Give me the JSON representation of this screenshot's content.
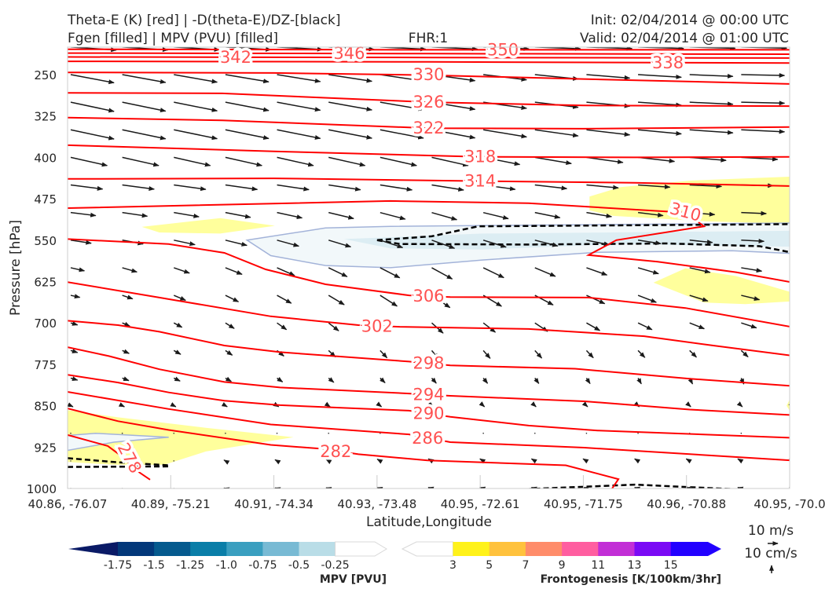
{
  "header": {
    "title_left_1": "Theta-E (K) [red] | -D(theta-E)/DZ-[black]",
    "title_left_2": "Fgen [filled] | MPV (PVU) [filled]",
    "fhr": "FHR:1",
    "init": "Init: 02/04/2014 @ 00:00 UTC",
    "valid": "Valid: 02/04/2014 @ 01:00 UTC"
  },
  "legend": {
    "wind_label": "10 m/s",
    "vertical_label": "10 cm/s"
  },
  "colors": {
    "theta_e": "#ff0000",
    "theta_e_label": "#ff5050",
    "stability": "#000000",
    "fgen_fill": "#ffff9c",
    "mpv_outer": "#f2f8fa",
    "mpv_inner": "#dcedf3",
    "mpv_edge": "#a3b3d9"
  },
  "chart_data": {
    "type": "cross-section",
    "title": "Theta-E (K) [red] | -D(theta-E)/DZ-[black] | Fgen [filled] | MPV (PVU) [filled]",
    "xlabel": "Latitude,Longitude",
    "ylabel": "Pressure [hPa]",
    "xticks": [
      "40.86, -76.07",
      "40.89, -75.21",
      "40.91, -74.34",
      "40.93, -73.48",
      "40.95, -72.61",
      "40.95, -71.75",
      "40.96, -70.88",
      "40.95, -70.0"
    ],
    "yticks": [
      250,
      325,
      400,
      475,
      550,
      625,
      700,
      775,
      850,
      925,
      1000
    ],
    "ylim": [
      200,
      1000
    ],
    "xlim": [
      0,
      7
    ],
    "theta_e_contours": [
      {
        "level": "350",
        "label_at": [
          3.5,
          205
        ],
        "points": [
          [
            0,
            204
          ],
          [
            3.5,
            205
          ],
          [
            7,
            205
          ]
        ]
      },
      {
        "level": "346",
        "label_at": [
          3.55,
          212
        ],
        "points": [
          [
            0,
            211
          ],
          [
            3.5,
            212
          ],
          [
            7,
            213
          ]
        ]
      },
      {
        "level": "342",
        "label_at": [
          3.5,
          219
        ],
        "points": [
          [
            0,
            218
          ],
          [
            3.5,
            219
          ],
          [
            7,
            220
          ]
        ]
      },
      {
        "level": "338",
        "label_at": [
          3.55,
          227
        ],
        "points": [
          [
            0,
            226
          ],
          [
            3.5,
            227
          ],
          [
            7,
            229
          ]
        ]
      },
      {
        "level": "330",
        "label_at": [
          3.5,
          250
        ],
        "points": [
          [
            0,
            246
          ],
          [
            2,
            247
          ],
          [
            3.5,
            251
          ],
          [
            5,
            258
          ],
          [
            7,
            267
          ]
        ]
      },
      {
        "level": "326",
        "label_at": [
          3.5,
          300
        ],
        "points": [
          [
            0,
            283
          ],
          [
            1.5,
            284
          ],
          [
            3.5,
            300
          ],
          [
            5,
            306
          ],
          [
            7,
            307
          ]
        ]
      },
      {
        "level": "322",
        "label_at": [
          3.5,
          347
        ],
        "points": [
          [
            0,
            328
          ],
          [
            1.5,
            333
          ],
          [
            3.5,
            347
          ],
          [
            5,
            348
          ],
          [
            7,
            345
          ]
        ]
      },
      {
        "level": "318",
        "label_at": [
          4.0,
          399
        ],
        "points": [
          [
            0,
            378
          ],
          [
            2,
            389
          ],
          [
            4,
            399
          ],
          [
            5.5,
            400
          ],
          [
            7,
            399
          ]
        ]
      },
      {
        "level": "314",
        "label_at": [
          4.0,
          443
        ],
        "points": [
          [
            0,
            439
          ],
          [
            2,
            438
          ],
          [
            4,
            443
          ],
          [
            5.5,
            446
          ],
          [
            7,
            452
          ]
        ]
      },
      {
        "level": "310",
        "label_at": [
          5.99,
          499
        ],
        "points": [
          [
            0,
            492
          ],
          [
            3.13,
            479
          ],
          [
            4.47,
            483
          ],
          [
            5.72,
            497
          ],
          [
            5.99,
            500
          ],
          [
            6.17,
            525
          ],
          [
            5.32,
            550
          ],
          [
            5.05,
            577
          ],
          [
            5.72,
            589
          ],
          [
            6.48,
            608
          ],
          [
            7.01,
            626
          ]
        ]
      },
      {
        "level": "306",
        "label_at": [
          3.5,
          651
        ],
        "points": [
          [
            0,
            548
          ],
          [
            0.98,
            557
          ],
          [
            1.52,
            573
          ],
          [
            1.92,
            603
          ],
          [
            2.5,
            630
          ],
          [
            3.31,
            650
          ],
          [
            3.71,
            653
          ],
          [
            5.05,
            654
          ],
          [
            5.99,
            673
          ],
          [
            7.01,
            707
          ]
        ]
      },
      {
        "level": "302",
        "label_at": [
          3.0,
          706
        ],
        "points": [
          [
            0,
            626
          ],
          [
            0.89,
            654
          ],
          [
            1.97,
            688
          ],
          [
            2.82,
            704
          ],
          [
            3.22,
            707
          ],
          [
            4.47,
            711
          ],
          [
            5.59,
            724
          ],
          [
            6.26,
            741
          ],
          [
            7.01,
            759
          ]
        ]
      },
      {
        "level": "298",
        "label_at": [
          3.5,
          773
        ],
        "points": [
          [
            0,
            696
          ],
          [
            0.49,
            704
          ],
          [
            0.89,
            716
          ],
          [
            1.52,
            741
          ],
          [
            2.06,
            753
          ],
          [
            3.31,
            770
          ],
          [
            3.71,
            777
          ],
          [
            4.92,
            783
          ],
          [
            6.03,
            801
          ],
          [
            7.01,
            814
          ]
        ]
      },
      {
        "level": "294",
        "label_at": [
          3.5,
          830
        ],
        "points": [
          [
            0,
            744
          ],
          [
            0.4,
            760
          ],
          [
            0.89,
            784
          ],
          [
            1.52,
            807
          ],
          [
            2.06,
            817
          ],
          [
            3.31,
            828
          ],
          [
            3.71,
            832
          ],
          [
            5.01,
            842
          ],
          [
            6.03,
            857
          ],
          [
            7.01,
            867
          ]
        ]
      },
      {
        "level": "290",
        "label_at": [
          3.5,
          864
        ],
        "points": [
          [
            0,
            794
          ],
          [
            0.49,
            808
          ],
          [
            0.98,
            826
          ],
          [
            1.52,
            841
          ],
          [
            2.06,
            849
          ],
          [
            3.31,
            859
          ],
          [
            3.71,
            870
          ],
          [
            4.47,
            886
          ],
          [
            5.14,
            895
          ],
          [
            7.01,
            908
          ]
        ]
      },
      {
        "level": "286",
        "label_at": [
          3.49,
          909
        ],
        "points": [
          [
            0,
            825
          ],
          [
            0.98,
            856
          ],
          [
            1.97,
            884
          ],
          [
            3.31,
            902
          ],
          [
            3.71,
            916
          ],
          [
            5.01,
            926
          ],
          [
            7.01,
            949
          ]
        ]
      },
      {
        "level": "282",
        "label_at": [
          2.6,
          933
        ],
        "points": [
          [
            0,
            855
          ],
          [
            0.49,
            878
          ],
          [
            0.98,
            894
          ],
          [
            1.97,
            921
          ],
          [
            2.46,
            928
          ],
          [
            2.82,
            938
          ],
          [
            3.49,
            949
          ],
          [
            4.83,
            958
          ],
          [
            5.34,
            983
          ],
          [
            5.25,
            1008
          ]
        ]
      },
      {
        "level": "278",
        "label_at": [
          0.6,
          945
        ],
        "points": [
          [
            0,
            903
          ],
          [
            0.39,
            923
          ],
          [
            0.55,
            945
          ],
          [
            0.65,
            965
          ],
          [
            0.8,
            984
          ]
        ]
      }
    ],
    "stability_dashed": [
      [
        [
          3.0,
          550
        ],
        [
          3.53,
          543
        ],
        [
          3.98,
          525
        ],
        [
          7.01,
          521
        ]
      ],
      [
        [
          3.0,
          550
        ],
        [
          3.22,
          557
        ],
        [
          4.47,
          558
        ],
        [
          5.81,
          556
        ],
        [
          6.71,
          561
        ],
        [
          7.01,
          572
        ]
      ],
      [
        [
          0,
          945
        ],
        [
          0.45,
          952
        ],
        [
          0.98,
          958
        ]
      ],
      [
        [
          0,
          961
        ],
        [
          0.98,
          960
        ]
      ],
      [
        [
          3.44,
          1006
        ],
        [
          4.47,
          1001
        ],
        [
          5.5,
          993
        ],
        [
          7.01,
          1006
        ]
      ]
    ],
    "fgen_regions": [
      [
        [
          5.06,
          471
        ],
        [
          5.36,
          454
        ],
        [
          6.05,
          442
        ],
        [
          7,
          435
        ],
        [
          7,
          520
        ],
        [
          6.2,
          516
        ],
        [
          5.29,
          506
        ],
        [
          5.06,
          496
        ]
      ],
      [
        [
          0.72,
          526
        ],
        [
          1.48,
          510
        ],
        [
          2.01,
          524
        ],
        [
          1.48,
          538
        ],
        [
          0.89,
          536
        ]
      ],
      [
        [
          5.68,
          627
        ],
        [
          5.99,
          601
        ],
        [
          6.48,
          615
        ],
        [
          7.01,
          644
        ],
        [
          7.01,
          661
        ],
        [
          6.57,
          666
        ],
        [
          6.17,
          663
        ]
      ],
      [
        [
          0,
          858
        ],
        [
          0.49,
          871
        ],
        [
          1.34,
          890
        ],
        [
          2.19,
          907
        ],
        [
          1.34,
          933
        ],
        [
          0.94,
          957
        ],
        [
          0.45,
          957
        ],
        [
          0,
          952
        ]
      ],
      [
        [
          7.01,
          835
        ],
        [
          6.97,
          850
        ],
        [
          7.01,
          862
        ]
      ]
    ],
    "mpv_regions": {
      "outer": [
        [
          [
            1.74,
            550
          ],
          [
            2.5,
            528
          ],
          [
            3.13,
            525
          ],
          [
            7.01,
            519
          ],
          [
            7.01,
            574
          ],
          [
            6.44,
            569
          ],
          [
            5.14,
            572
          ],
          [
            4.02,
            586
          ],
          [
            3.13,
            600
          ],
          [
            2.5,
            596
          ],
          [
            1.97,
            578
          ]
        ],
        [
          [
            0,
            904
          ],
          [
            0.27,
            900
          ],
          [
            0.98,
            907
          ],
          [
            0.45,
            916
          ],
          [
            0,
            931
          ]
        ]
      ],
      "inner": [
        [
          [
            2.68,
            548
          ],
          [
            4.02,
            538
          ],
          [
            7.01,
            533
          ],
          [
            7.01,
            562
          ],
          [
            5.36,
            557
          ],
          [
            4.02,
            567
          ],
          [
            3.13,
            565
          ]
        ]
      ]
    },
    "colorbars": [
      {
        "label": "MPV [PVU]",
        "ticks": [
          "-1.75",
          "-1.5",
          "-1.25",
          "-1.0",
          "-0.75",
          "-0.5",
          "-0.25"
        ],
        "colors": [
          "#0a1a66",
          "#03387a",
          "#055a8e",
          "#0a7ea8",
          "#3a9fc0",
          "#78bad4",
          "#b9dde7",
          "#ffffff"
        ]
      },
      {
        "label": "Frontogenesis [K/100km/3hr]",
        "ticks": [
          "3",
          "5",
          "7",
          "9",
          "11",
          "13",
          "15"
        ],
        "colors": [
          "#ffffff",
          "#fff21a",
          "#ffc23d",
          "#ff8c6a",
          "#ff5ea0",
          "#c22fd6",
          "#7a0af5",
          "#2200ff"
        ]
      }
    ],
    "wind_rows": [
      {
        "p": 200,
        "left": [
          40,
          -3
        ],
        "mid": [
          40,
          -2
        ],
        "right": [
          40,
          -1
        ]
      },
      {
        "p": 250,
        "left": [
          38,
          -8
        ],
        "mid": [
          38,
          -6
        ],
        "right": [
          38,
          0
        ]
      },
      {
        "p": 300,
        "left": [
          38,
          -9
        ],
        "mid": [
          38,
          -7
        ],
        "right": [
          38,
          0
        ]
      },
      {
        "p": 350,
        "left": [
          38,
          -9
        ],
        "mid": [
          38,
          -8
        ],
        "right": [
          38,
          -1
        ]
      },
      {
        "p": 400,
        "left": [
          32,
          -8
        ],
        "mid": [
          32,
          -8
        ],
        "right": [
          32,
          -1
        ]
      },
      {
        "p": 450,
        "left": [
          28,
          -4
        ],
        "mid": [
          28,
          -5
        ],
        "right": [
          28,
          0
        ]
      },
      {
        "p": 500,
        "left": [
          22,
          -3
        ],
        "mid": [
          22,
          -7
        ],
        "right": [
          22,
          0
        ]
      },
      {
        "p": 550,
        "left": [
          18,
          -3
        ],
        "mid": [
          20,
          -8
        ],
        "right": [
          20,
          0
        ]
      },
      {
        "p": 600,
        "left": [
          12,
          -3
        ],
        "mid": [
          18,
          -11
        ],
        "right": [
          18,
          -2
        ]
      },
      {
        "p": 650,
        "left": [
          8,
          -2
        ],
        "mid": [
          16,
          -12
        ],
        "right": [
          16,
          -3
        ]
      },
      {
        "p": 700,
        "left": [
          6,
          -2
        ],
        "mid": [
          10,
          -10
        ],
        "right": [
          14,
          -4
        ]
      },
      {
        "p": 750,
        "left": [
          6,
          -2
        ],
        "mid": [
          6,
          -8
        ],
        "right": [
          6,
          -6
        ]
      },
      {
        "p": 800,
        "left": [
          6,
          -2
        ],
        "mid": [
          4,
          -5
        ],
        "right": [
          2,
          -6
        ]
      },
      {
        "p": 850,
        "left": [
          2,
          -1
        ],
        "mid": [
          1,
          -1
        ],
        "right": [
          1,
          -1
        ]
      },
      {
        "p": 900,
        "left": [
          1,
          0
        ],
        "mid": [
          1,
          0
        ],
        "right": [
          1,
          0
        ]
      },
      {
        "p": 950,
        "left": [
          0,
          0
        ],
        "mid": [
          -3,
          2
        ],
        "right": [
          -3,
          2
        ]
      },
      {
        "p": 1000,
        "left": [
          0,
          0
        ],
        "mid": [
          -3,
          1
        ],
        "right": [
          -3,
          1
        ]
      }
    ]
  }
}
